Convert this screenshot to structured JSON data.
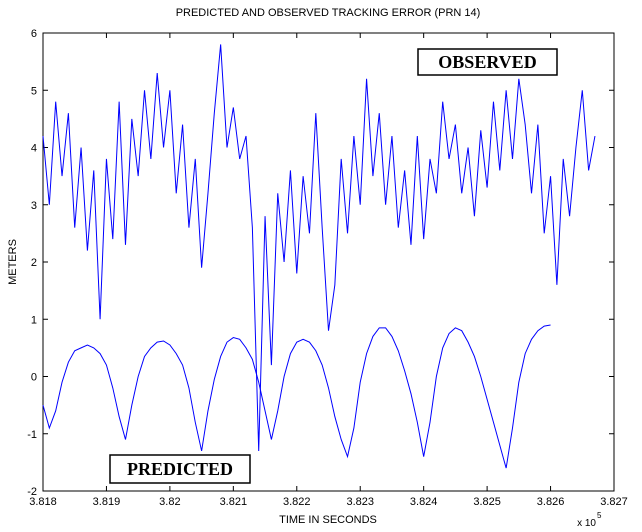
{
  "chart_data": {
    "type": "line",
    "title": "PREDICTED AND OBSERVED TRACKING ERROR (PRN 14)",
    "x_label": "TIME IN SECONDS",
    "y_label": "METERS",
    "x_scale_label": "x 10",
    "x_scale_exponent": "5",
    "xlim": [
      3.818,
      3.827
    ],
    "ylim": [
      -2,
      6
    ],
    "xticks": [
      3.818,
      3.819,
      3.82,
      3.821,
      3.822,
      3.823,
      3.824,
      3.825,
      3.826,
      3.827
    ],
    "yticks": [
      -2,
      -1,
      0,
      1,
      2,
      3,
      4,
      5,
      6
    ],
    "grid": false,
    "series": [
      {
        "name": "PREDICTED",
        "color": "#0000ff",
        "x": [
          3.818,
          3.8181,
          3.8182,
          3.8183,
          3.8184,
          3.8185,
          3.8186,
          3.8187,
          3.8188,
          3.8189,
          3.819,
          3.8191,
          3.8192,
          3.8193,
          3.8194,
          3.8195,
          3.8196,
          3.8197,
          3.8198,
          3.8199,
          3.82,
          3.8201,
          3.8202,
          3.8203,
          3.8204,
          3.8205,
          3.8206,
          3.8207,
          3.8208,
          3.8209,
          3.821,
          3.8211,
          3.8212,
          3.8213,
          3.8214,
          3.8215,
          3.8216,
          3.8217,
          3.8218,
          3.8219,
          3.822,
          3.8221,
          3.8222,
          3.8223,
          3.8224,
          3.8225,
          3.8226,
          3.8227,
          3.8228,
          3.8229,
          3.823,
          3.8231,
          3.8232,
          3.8233,
          3.8234,
          3.8235,
          3.8236,
          3.8237,
          3.8238,
          3.8239,
          3.824,
          3.8241,
          3.8242,
          3.8243,
          3.8244,
          3.8245,
          3.8246,
          3.8247,
          3.8248,
          3.8249,
          3.825,
          3.8251,
          3.8252,
          3.8253,
          3.8254,
          3.8255,
          3.8256,
          3.8257,
          3.8258,
          3.8259,
          3.826
        ],
        "values": [
          -0.5,
          -0.9,
          -0.6,
          -0.1,
          0.25,
          0.45,
          0.5,
          0.55,
          0.5,
          0.4,
          0.2,
          -0.2,
          -0.7,
          -1.1,
          -0.5,
          0.0,
          0.35,
          0.5,
          0.6,
          0.62,
          0.55,
          0.4,
          0.2,
          -0.2,
          -0.8,
          -1.3,
          -0.6,
          -0.05,
          0.35,
          0.6,
          0.68,
          0.65,
          0.5,
          0.3,
          -0.1,
          -0.6,
          -1.1,
          -0.6,
          0.0,
          0.4,
          0.6,
          0.65,
          0.6,
          0.45,
          0.2,
          -0.2,
          -0.7,
          -1.1,
          -1.4,
          -0.9,
          -0.1,
          0.4,
          0.7,
          0.85,
          0.85,
          0.7,
          0.45,
          0.1,
          -0.3,
          -0.8,
          -1.4,
          -0.8,
          0.0,
          0.5,
          0.75,
          0.85,
          0.8,
          0.6,
          0.35,
          0.0,
          -0.4,
          -0.8,
          -1.2,
          -1.6,
          -0.9,
          -0.1,
          0.4,
          0.65,
          0.8,
          0.88,
          0.9
        ]
      },
      {
        "name": "OBSERVED",
        "color": "#0000ff",
        "x": [
          3.818,
          3.8181,
          3.8182,
          3.8183,
          3.8184,
          3.8185,
          3.8186,
          3.8187,
          3.8188,
          3.8189,
          3.819,
          3.8191,
          3.8192,
          3.8193,
          3.8194,
          3.8195,
          3.8196,
          3.8197,
          3.8198,
          3.8199,
          3.82,
          3.8201,
          3.8202,
          3.8203,
          3.8204,
          3.8205,
          3.8206,
          3.8207,
          3.8208,
          3.8209,
          3.821,
          3.8211,
          3.8212,
          3.8213,
          3.8214,
          3.8215,
          3.8216,
          3.8217,
          3.8218,
          3.8219,
          3.822,
          3.8221,
          3.8222,
          3.8223,
          3.8224,
          3.8225,
          3.8226,
          3.8227,
          3.8228,
          3.8229,
          3.823,
          3.8231,
          3.8232,
          3.8233,
          3.8234,
          3.8235,
          3.8236,
          3.8237,
          3.8238,
          3.8239,
          3.824,
          3.8241,
          3.8242,
          3.8243,
          3.8244,
          3.8245,
          3.8246,
          3.8247,
          3.8248,
          3.8249,
          3.825,
          3.8251,
          3.8252,
          3.8253,
          3.8254,
          3.8255,
          3.8256,
          3.8257,
          3.8258,
          3.8259,
          3.826,
          3.8261,
          3.8262,
          3.8263,
          3.8264,
          3.8265,
          3.8266,
          3.8267
        ],
        "values": [
          4.2,
          3.0,
          4.8,
          3.5,
          4.6,
          2.6,
          4.0,
          2.2,
          3.6,
          1.0,
          3.8,
          2.4,
          4.8,
          2.3,
          4.5,
          3.5,
          5.0,
          3.8,
          5.3,
          4.0,
          5.0,
          3.2,
          4.4,
          2.6,
          3.8,
          1.9,
          3.2,
          4.6,
          5.8,
          4.0,
          4.7,
          3.8,
          4.2,
          2.6,
          -1.3,
          2.8,
          0.2,
          3.2,
          2.0,
          3.6,
          1.8,
          3.5,
          2.5,
          4.6,
          2.6,
          0.8,
          1.6,
          3.8,
          2.5,
          4.2,
          3.0,
          5.2,
          3.5,
          4.6,
          3.0,
          4.2,
          2.6,
          3.6,
          2.3,
          4.2,
          2.4,
          3.8,
          3.2,
          4.8,
          3.8,
          4.4,
          3.2,
          4.0,
          2.8,
          4.3,
          3.3,
          4.8,
          3.6,
          5.0,
          3.8,
          5.2,
          4.4,
          3.2,
          4.4,
          2.5,
          3.5,
          1.6,
          3.8,
          2.8,
          4.0,
          5.0,
          3.6,
          4.2
        ]
      }
    ]
  }
}
